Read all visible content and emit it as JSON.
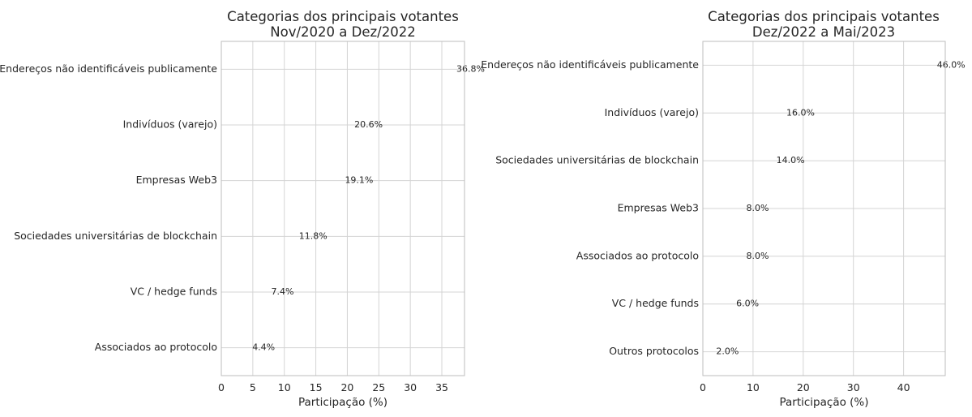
{
  "chart_data": [
    {
      "type": "bar",
      "orientation": "horizontal",
      "title": "Categorias dos principais votantes\nNov/2020 a Dez/2022",
      "xlabel": "Participação (%)",
      "ylabel": "",
      "xlim": [
        0,
        38.6
      ],
      "xticks": [
        0,
        5,
        10,
        15,
        20,
        25,
        30,
        35
      ],
      "grid": true,
      "bar_color": "#4a76a8",
      "categories": [
        "Endereços não identificáveis publicamente",
        "Indivíduos (varejo)",
        "Empresas Web3",
        "Sociedades universitárias de blockchain",
        "VC / hedge funds",
        "Associados ao protocolo"
      ],
      "values": [
        36.8,
        20.6,
        19.1,
        11.8,
        7.4,
        4.4
      ],
      "labels": [
        "36.8%",
        "20.6%",
        "19.1%",
        "11.8%",
        "7.4%",
        "4.4%"
      ]
    },
    {
      "type": "bar",
      "orientation": "horizontal",
      "title": "Categorias dos principais votantes\nDez/2022 a Mai/2023",
      "xlabel": "Participação (%)",
      "ylabel": "",
      "xlim": [
        0,
        48.3
      ],
      "xticks": [
        0,
        10,
        20,
        30,
        40
      ],
      "grid": true,
      "bar_color": "#4a76a8",
      "categories": [
        "Endereços não identificáveis publicamente",
        "Indivíduos (varejo)",
        "Sociedades universitárias de blockchain",
        "Empresas Web3",
        "Associados ao protocolo",
        "VC / hedge funds",
        "Outros protocolos"
      ],
      "values": [
        46.0,
        16.0,
        14.0,
        8.0,
        8.0,
        6.0,
        2.0
      ],
      "labels": [
        "46.0%",
        "16.0%",
        "14.0%",
        "8.0%",
        "8.0%",
        "6.0%",
        "2.0%"
      ]
    }
  ]
}
